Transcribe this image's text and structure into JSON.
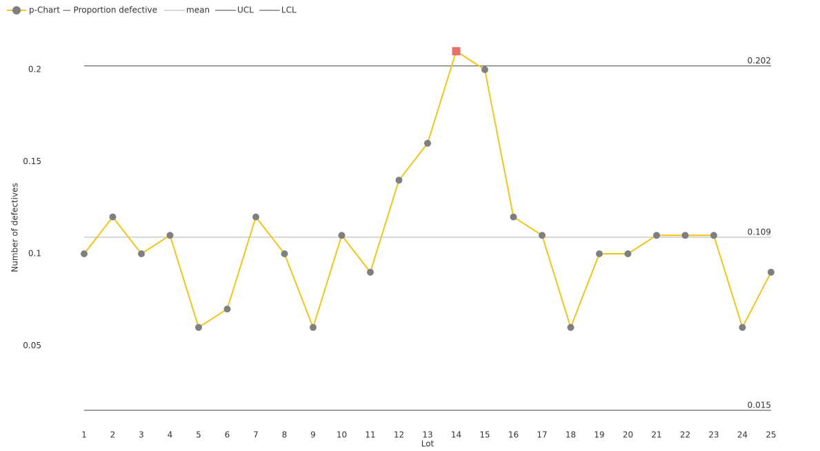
{
  "chart_data": {
    "type": "line",
    "x_label": "Lot",
    "y_label": "Number of defectives",
    "x": [
      1,
      2,
      3,
      4,
      5,
      6,
      7,
      8,
      9,
      10,
      11,
      12,
      13,
      14,
      15,
      16,
      17,
      18,
      19,
      20,
      21,
      22,
      23,
      24,
      25
    ],
    "xlim": [
      1,
      25
    ],
    "xticks": [
      1,
      2,
      3,
      4,
      5,
      6,
      7,
      8,
      9,
      10,
      11,
      12,
      13,
      14,
      15,
      16,
      17,
      18,
      19,
      20,
      21,
      22,
      23,
      24,
      25
    ],
    "ylim": [
      0.01,
      0.215
    ],
    "yticks": [
      0.05,
      0.1,
      0.15,
      0.2
    ],
    "grid": false,
    "legend": "top-left",
    "series": [
      {
        "name": "p-Chart — Proportion defective",
        "color": "#f0c419",
        "marker_color": "#7f7f7f",
        "out_of_control_color": "#e8706b",
        "values": [
          0.1,
          0.12,
          0.1,
          0.11,
          0.06,
          0.07,
          0.12,
          0.1,
          0.06,
          0.11,
          0.09,
          0.14,
          0.16,
          0.21,
          0.2,
          0.12,
          0.11,
          0.06,
          0.1,
          0.1,
          0.11,
          0.11,
          0.11,
          0.06,
          0.09
        ]
      }
    ],
    "control_lines": [
      {
        "name": "mean",
        "value": 0.109,
        "color": "#b0b0b0"
      },
      {
        "name": "UCL",
        "value": 0.202,
        "color": "#444444"
      },
      {
        "name": "LCL",
        "value": 0.015,
        "color": "#444444"
      }
    ]
  }
}
